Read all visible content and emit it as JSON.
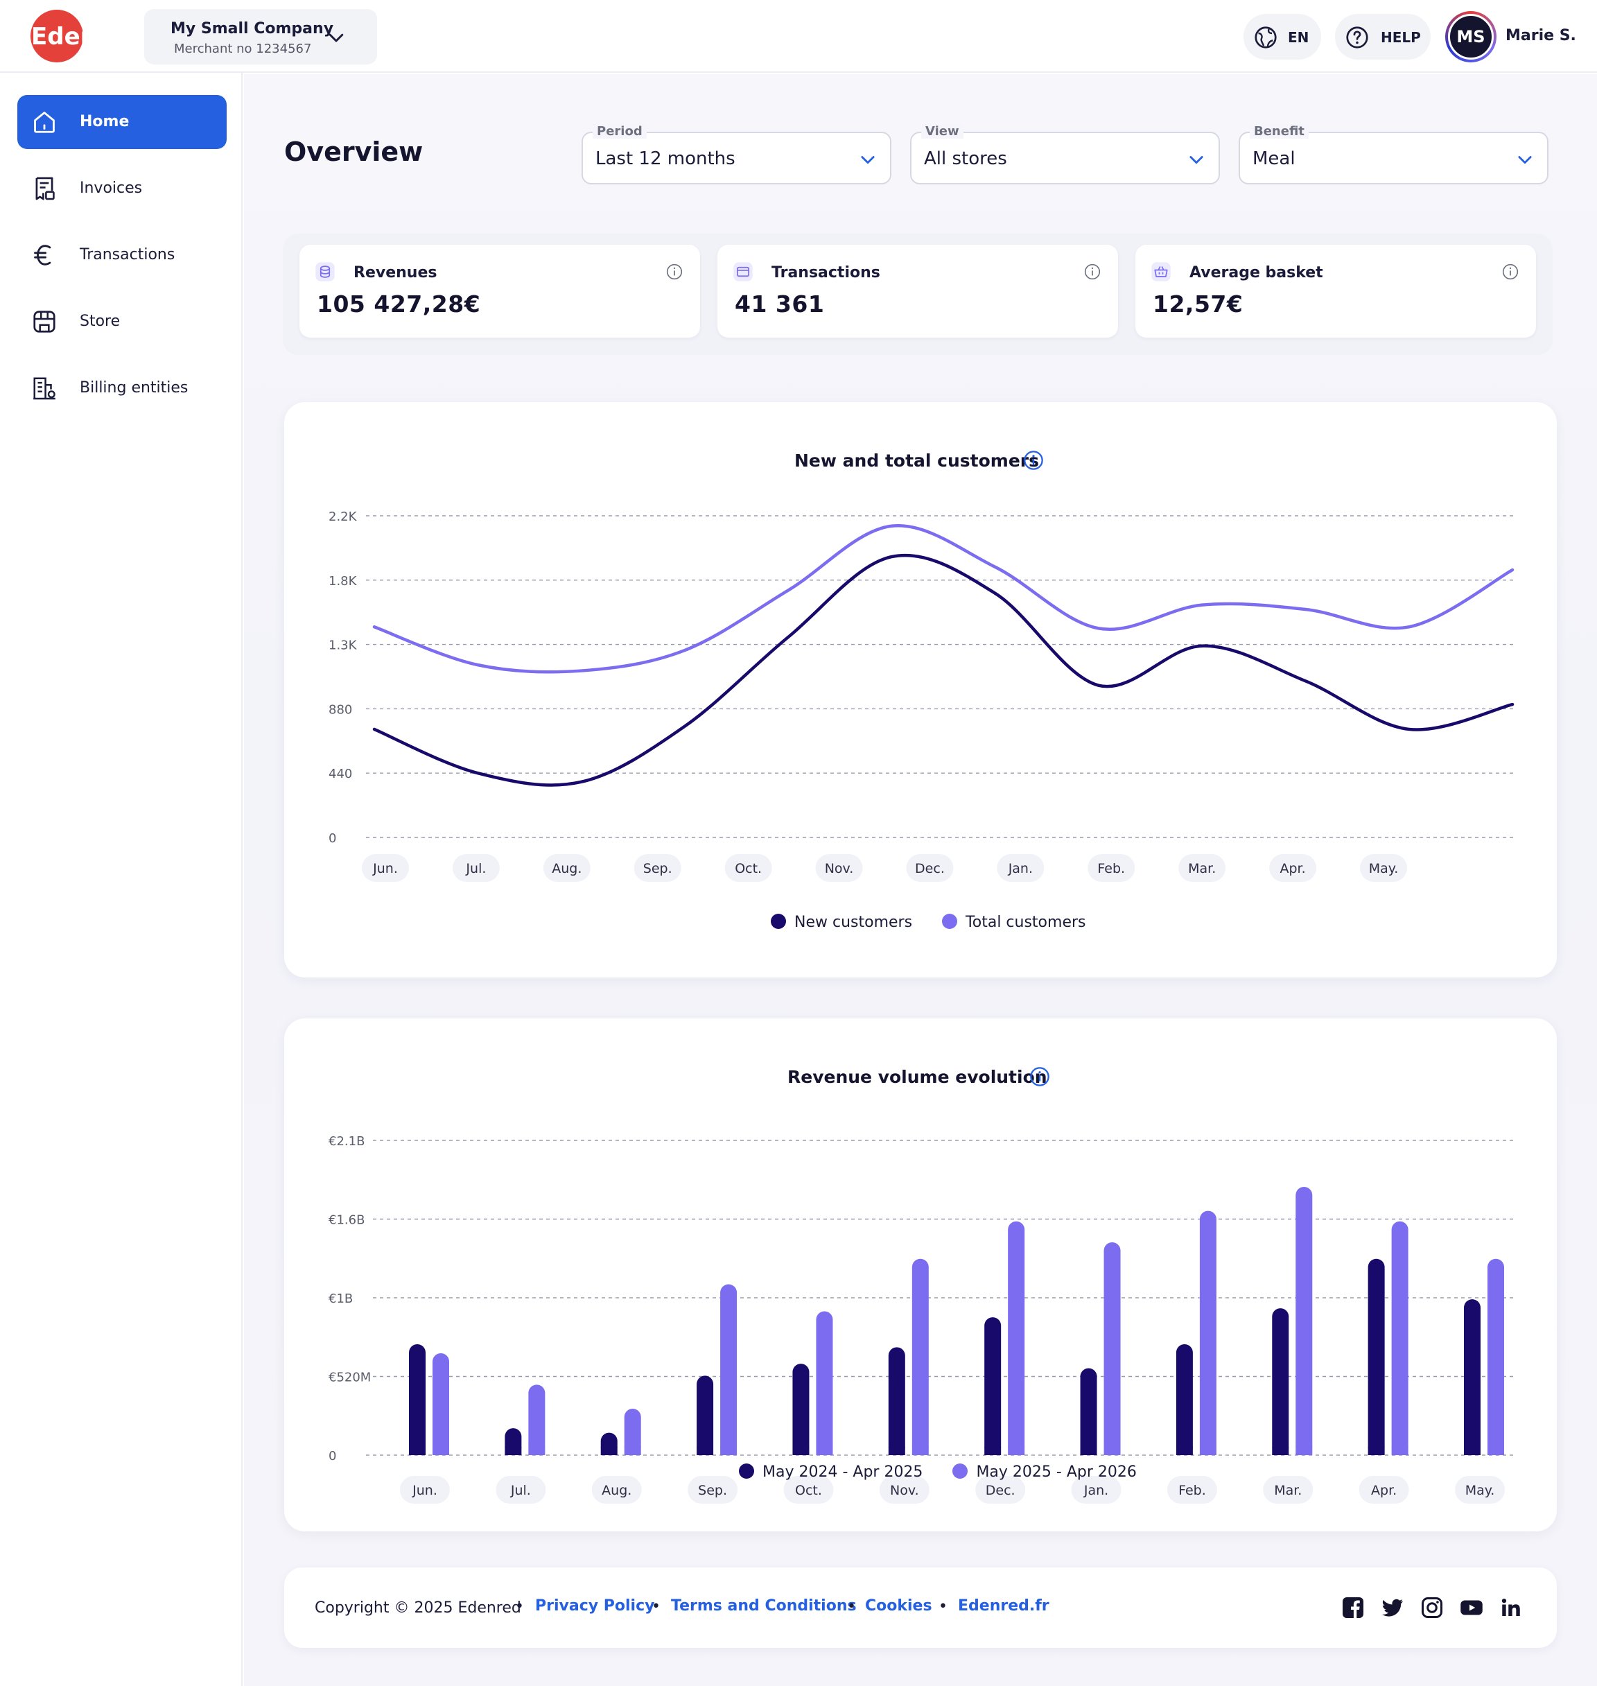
{
  "brand": {
    "logo_text": "Edenred",
    "accent": "#2460df",
    "logo_red": "#e4413a"
  },
  "header": {
    "company_name": "My Small Company",
    "merchant_no": "Merchant no 1234567",
    "language": "EN",
    "help": "HELP",
    "user_initials": "MS",
    "user_name": "Marie S."
  },
  "sidebar": {
    "items": [
      {
        "label": "Home",
        "icon": "home-icon",
        "active": true
      },
      {
        "label": "Invoices",
        "icon": "invoice-icon",
        "active": false
      },
      {
        "label": "Transactions",
        "icon": "euro-icon",
        "active": false
      },
      {
        "label": "Store",
        "icon": "store-icon",
        "active": false
      },
      {
        "label": "Billing entities",
        "icon": "building-icon",
        "active": false
      }
    ]
  },
  "main": {
    "title": "Overview",
    "filters": [
      {
        "label": "Period",
        "value": "Last 12 months"
      },
      {
        "label": "View",
        "value": "All stores"
      },
      {
        "label": "Benefit",
        "value": "Meal"
      }
    ],
    "kpis": [
      {
        "label": "Revenues",
        "value": "105 427,28€",
        "icon": "coins-icon"
      },
      {
        "label": "Transactions",
        "value": "41 361",
        "icon": "card-icon"
      },
      {
        "label": "Average basket",
        "value": "12,57€",
        "icon": "basket-icon"
      }
    ]
  },
  "chart_data": [
    {
      "type": "line",
      "title": "New and total customers",
      "categories": [
        "Jun.",
        "Jul.",
        "Aug.",
        "Sep.",
        "Oct.",
        "Nov.",
        "Dec.",
        "Jan.",
        "Feb.",
        "Mar.",
        "Apr.",
        "May."
      ],
      "y_ticks": [
        "0",
        "440",
        "880",
        "1.3K",
        "1.8K",
        "2.2K"
      ],
      "ylim": [
        0,
        2200
      ],
      "series": [
        {
          "name": "New customers",
          "color": "#180a6b",
          "values": [
            740,
            440,
            380,
            760,
            1370,
            1920,
            1670,
            1040,
            1310,
            1070,
            740,
            910
          ]
        },
        {
          "name": "Total customers",
          "color": "#7b6cf0",
          "values": [
            1440,
            1180,
            1140,
            1280,
            1690,
            2130,
            1850,
            1430,
            1590,
            1560,
            1440,
            1830
          ]
        }
      ],
      "grid": true,
      "legend": "bottom-center"
    },
    {
      "type": "bar",
      "title": "Revenue volume evolution",
      "categories": [
        "Jun.",
        "Jul.",
        "Aug.",
        "Sep.",
        "Oct.",
        "Nov.",
        "Dec.",
        "Jan.",
        "Feb.",
        "Mar.",
        "Apr.",
        "May."
      ],
      "y_ticks": [
        "0",
        "€520M",
        "€1B",
        "€1.6B",
        "€2.1B"
      ],
      "ylim": [
        0,
        2100
      ],
      "unit": "M€",
      "series": [
        {
          "name": "May 2024 - Apr 2025",
          "color": "#180a6b",
          "values": [
            740,
            180,
            150,
            530,
            610,
            720,
            920,
            580,
            740,
            980,
            1310,
            1040
          ]
        },
        {
          "name": "May 2025 - Apr 2026",
          "color": "#7b6cf0",
          "values": [
            680,
            470,
            310,
            1140,
            960,
            1310,
            1560,
            1420,
            1630,
            1790,
            1560,
            1310
          ]
        }
      ],
      "grid": true,
      "legend": "bottom-center"
    }
  ],
  "footer": {
    "copyright": "Copyright © 2025 Edenred",
    "links": [
      "Privacy Policy",
      "Terms and Conditions",
      "Cookies",
      "Edenred.fr"
    ],
    "social": [
      "facebook-icon",
      "twitter-icon",
      "instagram-icon",
      "youtube-icon",
      "linkedin-icon"
    ]
  }
}
